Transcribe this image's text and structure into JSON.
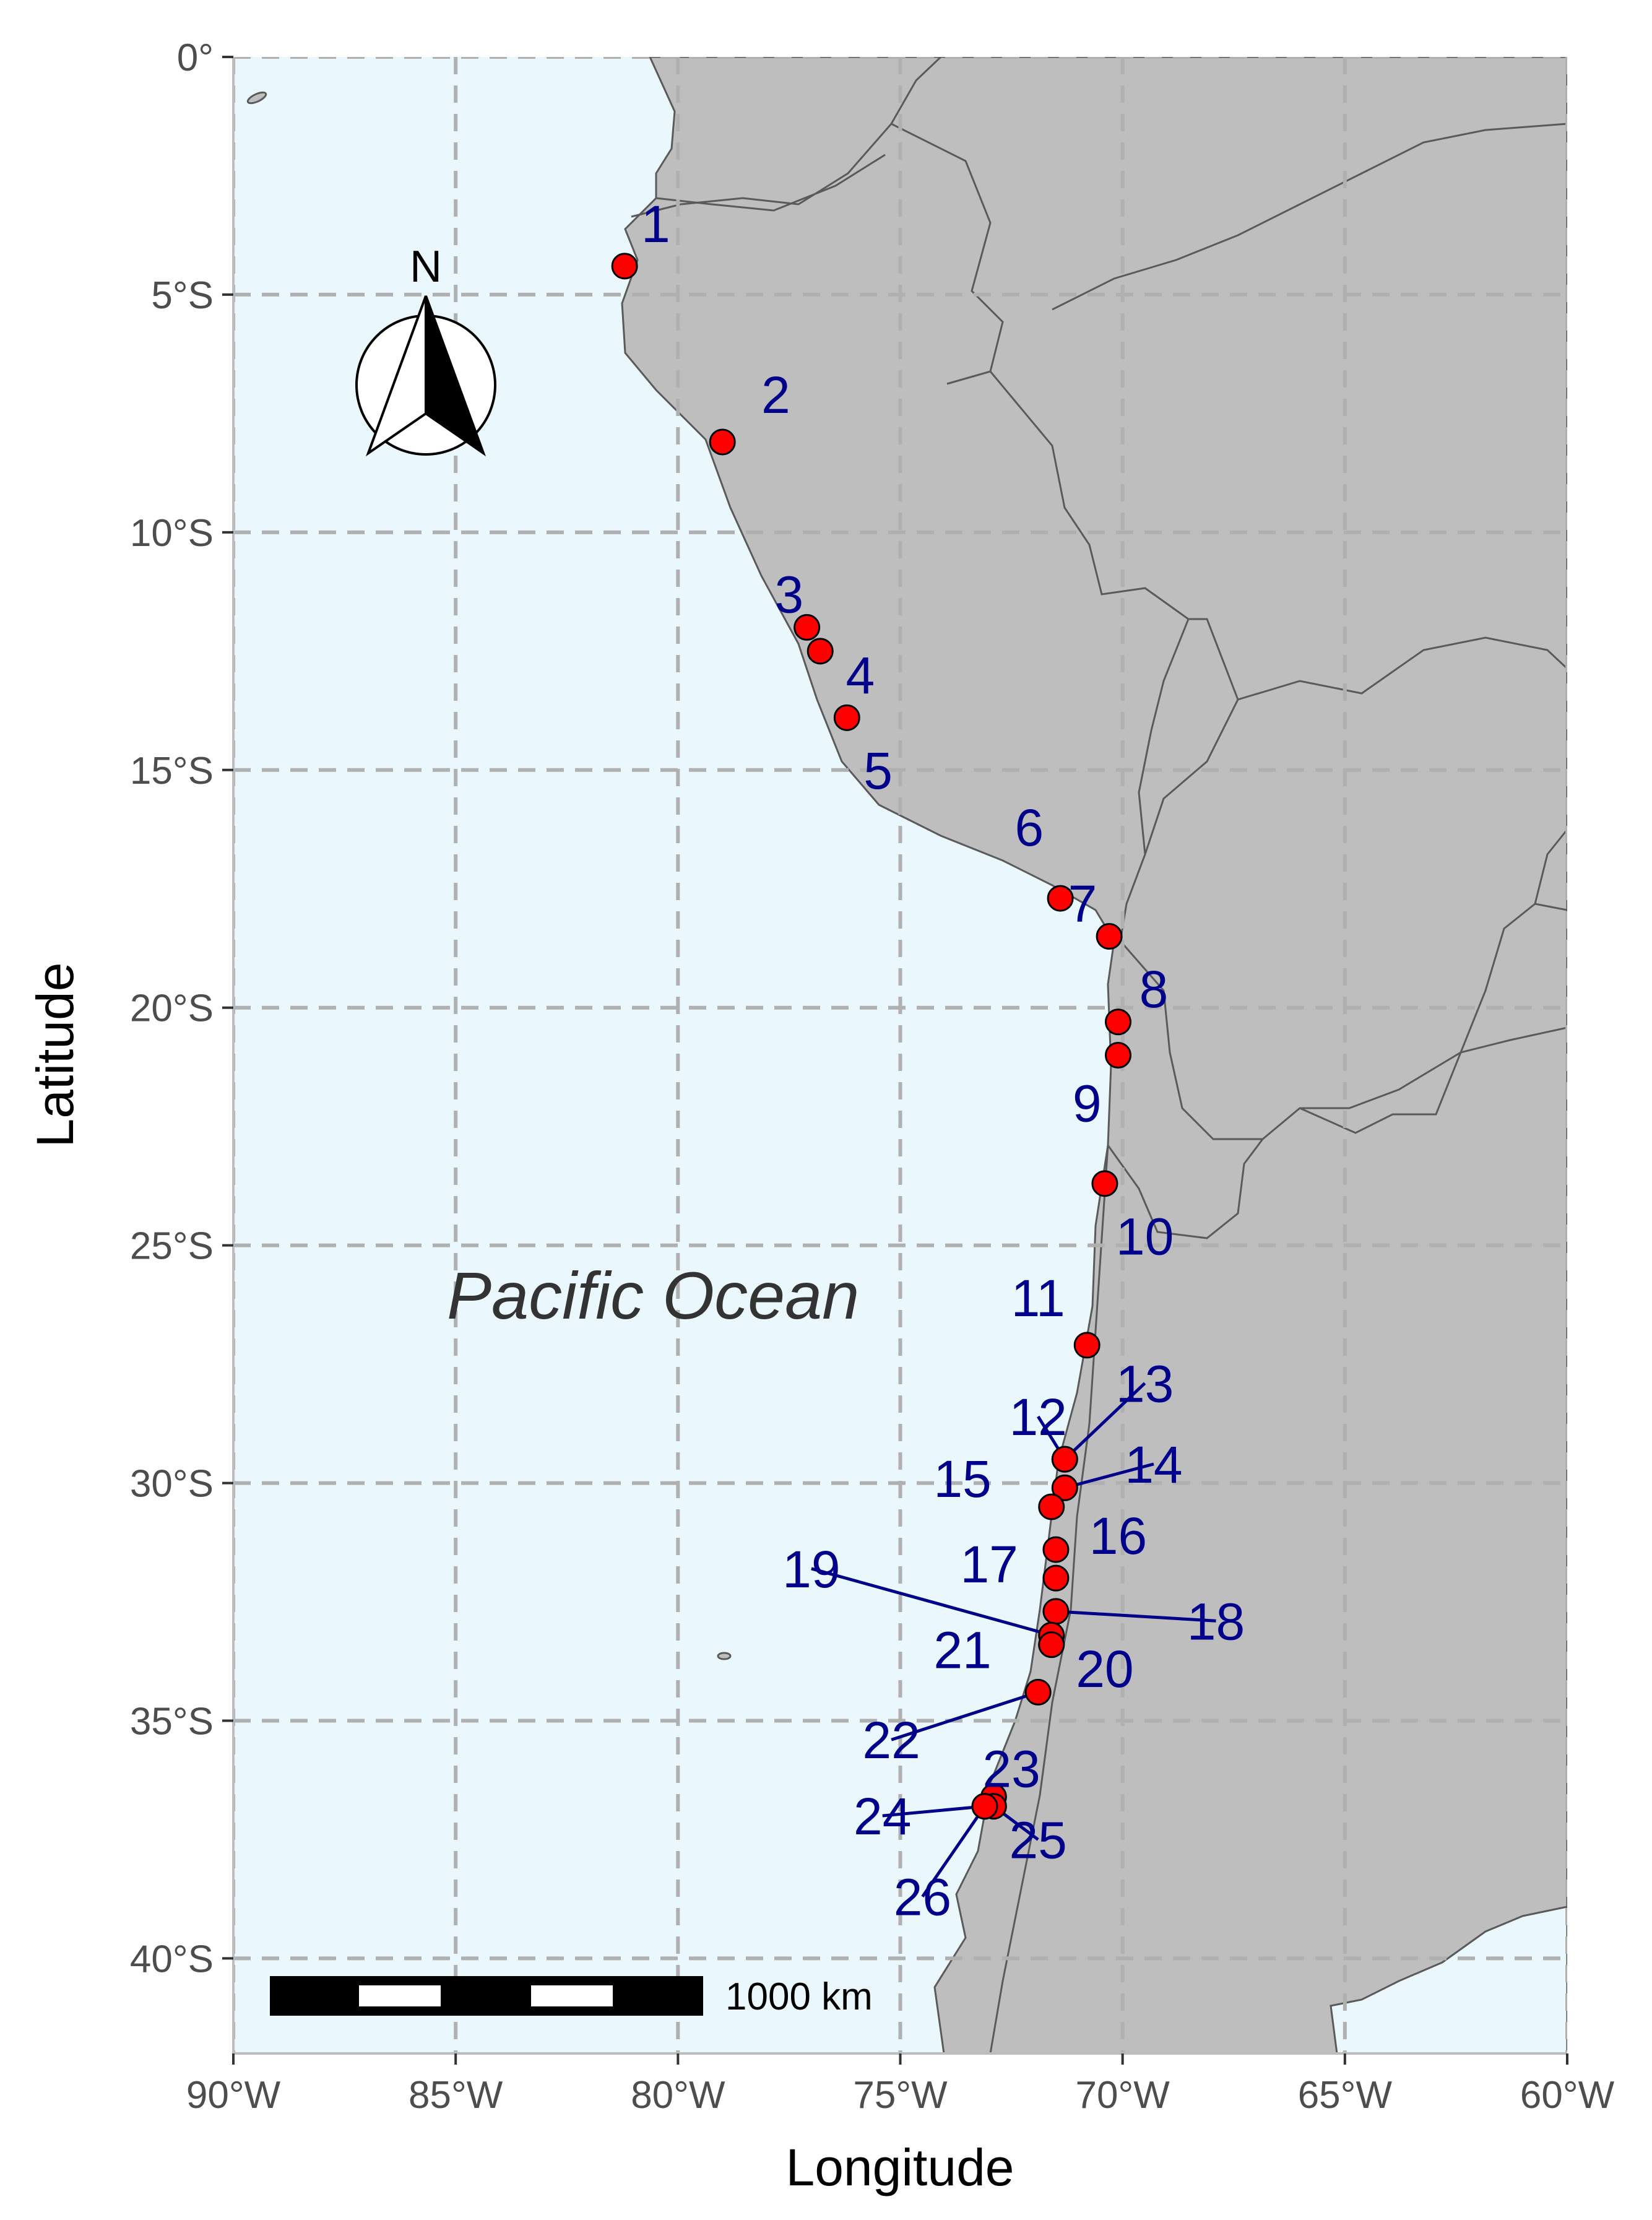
{
  "map": {
    "ocean_label": "Pacific Ocean",
    "xlabel": "Longitude",
    "ylabel": "Latitude",
    "xlim": [
      -90,
      -60
    ],
    "ylim": [
      -42,
      0
    ],
    "x_ticks": [
      {
        "value": -90,
        "label": "90°W"
      },
      {
        "value": -85,
        "label": "85°W"
      },
      {
        "value": -80,
        "label": "80°W"
      },
      {
        "value": -75,
        "label": "75°W"
      },
      {
        "value": -70,
        "label": "70°W"
      },
      {
        "value": -65,
        "label": "65°W"
      },
      {
        "value": -60,
        "label": "60°W"
      }
    ],
    "y_ticks": [
      {
        "value": 0,
        "label": "0°"
      },
      {
        "value": -5,
        "label": "5°S"
      },
      {
        "value": -10,
        "label": "10°S"
      },
      {
        "value": -15,
        "label": "15°S"
      },
      {
        "value": -20,
        "label": "20°S"
      },
      {
        "value": -25,
        "label": "25°S"
      },
      {
        "value": -30,
        "label": "30°S"
      },
      {
        "value": -35,
        "label": "35°S"
      },
      {
        "value": -40,
        "label": "40°S"
      }
    ],
    "grid": true,
    "colors": {
      "ocean": "#eaf7fd",
      "land": "#bebebe",
      "border": "#5a5a5a",
      "grid": "#b0b0b0",
      "site_fill": "#ff0000",
      "site_label": "#00008b"
    },
    "north_arrow": {
      "label": "N"
    },
    "scale_bar": {
      "label": "1000 km"
    },
    "sites": [
      {
        "id": "1",
        "lon": -81.2,
        "lat": -4.4,
        "label_lon": -80.5,
        "label_lat": -3.5
      },
      {
        "id": "2",
        "lon": -79.0,
        "lat": -8.1,
        "label_lon": -77.8,
        "label_lat": -7.1
      },
      {
        "id": "3",
        "lon": -77.1,
        "lat": -12.0,
        "label_lon": -77.5,
        "label_lat": -11.3
      },
      {
        "id": "4",
        "lon": -76.8,
        "lat": -12.5,
        "label_lon": -75.9,
        "label_lat": -13.0
      },
      {
        "id": "5",
        "lon": -76.2,
        "lat": -13.9,
        "label_lon": -75.5,
        "label_lat": -15.0
      },
      {
        "id": "6",
        "lon": -71.4,
        "lat": -17.7,
        "label_lon": -72.1,
        "label_lat": -16.2
      },
      {
        "id": "7",
        "lon": -70.3,
        "lat": -18.5,
        "label_lon": -70.9,
        "label_lat": -17.8
      },
      {
        "id": "8",
        "lon": -70.1,
        "lat": -20.3,
        "label_lon": -69.3,
        "label_lat": -19.6
      },
      {
        "id": "9",
        "lon": -70.1,
        "lat": -21.0,
        "label_lon": -70.8,
        "label_lat": -22.0
      },
      {
        "id": "10",
        "lon": -70.4,
        "lat": -23.7,
        "label_lon": -69.5,
        "label_lat": -24.8
      },
      {
        "id": "11",
        "lon": -70.8,
        "lat": -27.1,
        "label_lon": -71.9,
        "label_lat": -26.1
      },
      {
        "id": "12",
        "lon": -71.3,
        "lat": -29.5,
        "label_lon": -71.9,
        "label_lat": -28.6
      },
      {
        "id": "13",
        "lon": -71.3,
        "lat": -29.5,
        "label_lon": -69.5,
        "label_lat": -27.9
      },
      {
        "id": "14",
        "lon": -71.3,
        "lat": -30.1,
        "label_lon": -69.3,
        "label_lat": -29.6
      },
      {
        "id": "15",
        "lon": -71.6,
        "lat": -30.5,
        "label_lon": -73.6,
        "label_lat": -29.9
      },
      {
        "id": "16",
        "lon": -71.5,
        "lat": -31.4,
        "label_lon": -70.1,
        "label_lat": -31.1
      },
      {
        "id": "17",
        "lon": -71.5,
        "lat": -32.0,
        "label_lon": -73.0,
        "label_lat": -31.7
      },
      {
        "id": "18",
        "lon": -71.5,
        "lat": -32.7,
        "label_lon": -67.9,
        "label_lat": -32.9
      },
      {
        "id": "19",
        "lon": -71.6,
        "lat": -33.2,
        "label_lon": -77.0,
        "label_lat": -31.8
      },
      {
        "id": "20",
        "lon": -71.6,
        "lat": -33.4,
        "label_lon": -70.4,
        "label_lat": -33.9
      },
      {
        "id": "21",
        "lon": -71.6,
        "lat": -33.4,
        "label_lon": -73.6,
        "label_lat": -33.5
      },
      {
        "id": "22",
        "lon": -71.9,
        "lat": -34.4,
        "label_lon": -75.2,
        "label_lat": -35.4
      },
      {
        "id": "23",
        "lon": -72.9,
        "lat": -36.6,
        "label_lon": -72.5,
        "label_lat": -36.0
      },
      {
        "id": "24",
        "lon": -73.1,
        "lat": -36.8,
        "label_lon": -75.4,
        "label_lat": -37.0
      },
      {
        "id": "25",
        "lon": -72.9,
        "lat": -36.8,
        "label_lon": -71.9,
        "label_lat": -37.5
      },
      {
        "id": "26",
        "lon": -73.1,
        "lat": -36.8,
        "label_lon": -74.5,
        "label_lat": -38.7
      }
    ]
  }
}
